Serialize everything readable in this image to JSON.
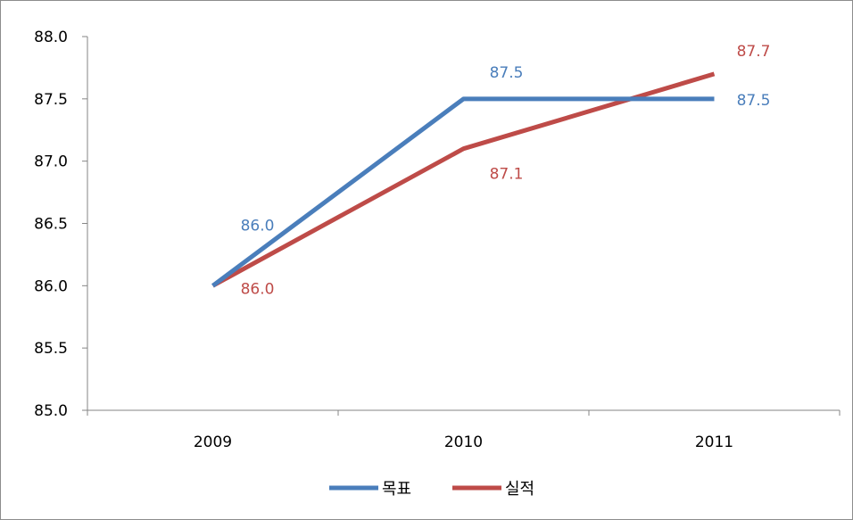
{
  "chart_data": {
    "type": "line",
    "categories": [
      "2009",
      "2010",
      "2011"
    ],
    "ylim": [
      85.0,
      88.0
    ],
    "y_ticks": [
      "85.0",
      "85.5",
      "86.0",
      "86.5",
      "87.0",
      "87.5",
      "88.0"
    ],
    "grid": false,
    "legend_position": "bottom",
    "series": [
      {
        "name": "목표",
        "values": [
          86.0,
          87.5,
          87.5
        ],
        "labels": [
          "86.0",
          "87.5",
          "87.5"
        ],
        "color": "#4a7ebb"
      },
      {
        "name": "실적",
        "values": [
          86.0,
          87.1,
          87.7
        ],
        "labels": [
          "86.0",
          "87.1",
          "87.7"
        ],
        "color": "#be4b48"
      }
    ]
  }
}
